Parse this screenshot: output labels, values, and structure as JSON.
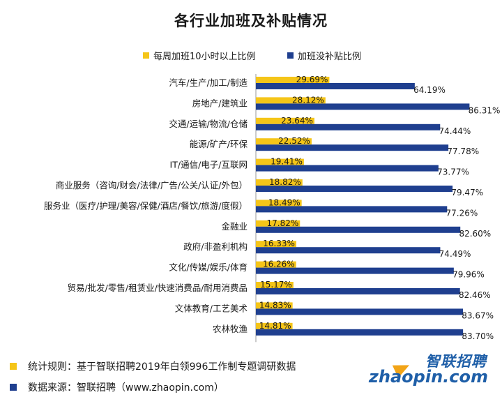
{
  "chart_data": {
    "type": "bar",
    "orientation": "horizontal",
    "title": "各行业加班及补贴情况",
    "categories": [
      "汽车/生产/加工/制造",
      "房地产/建筑业",
      "交通/运输/物流/仓储",
      "能源/矿产/环保",
      "IT/通信/电子/互联网",
      "商业服务（咨询/财会/法律/广告/公关/认证/外包）",
      "服务业（医疗/护理/美容/保健/酒店/餐饮/旅游/度假）",
      "金融业",
      "政府/非盈利机构",
      "文化/传媒/娱乐/体育",
      "贸易/批发/零售/租赁业/快速消费品/耐用消费品",
      "文体教育/工艺美术",
      "农林牧渔"
    ],
    "series": [
      {
        "name": "每周加班10小时以上比例",
        "color": "#f5c518",
        "values": [
          29.69,
          28.12,
          23.64,
          22.52,
          19.41,
          18.82,
          18.49,
          17.82,
          16.33,
          16.26,
          15.17,
          14.83,
          14.81
        ],
        "labels": [
          "29.69%",
          "28.12%",
          "23.64%",
          "22.52%",
          "19.41%",
          "18.82%",
          "18.49%",
          "17.82%",
          "16.33%",
          "16.26%",
          "15.17%",
          "14.83%",
          "14.81%"
        ]
      },
      {
        "name": "加班没补贴比例",
        "color": "#1f3f8f",
        "values": [
          64.19,
          86.31,
          74.44,
          77.78,
          73.77,
          79.47,
          77.26,
          82.6,
          74.49,
          79.96,
          82.46,
          83.67,
          83.7
        ],
        "labels": [
          "64.19%",
          "86.31%",
          "74.44%",
          "77.78%",
          "73.77%",
          "79.47%",
          "77.26%",
          "82.60%",
          "74.49%",
          "79.96%",
          "82.46%",
          "83.67%",
          "83.70%"
        ]
      }
    ],
    "xlim": [
      0,
      100
    ],
    "grid": false,
    "legend_position": "top"
  },
  "footer": {
    "rule_text": "统计规则：基于智联招聘2019年白领996工作制专题调研数据",
    "source_text": "数据来源：智联招聘（www.zhaopin.com）",
    "rule_color": "#f5c518",
    "source_color": "#1f3f8f"
  },
  "logo": {
    "cn": "智联招聘",
    "en": "zhaopin.com"
  }
}
